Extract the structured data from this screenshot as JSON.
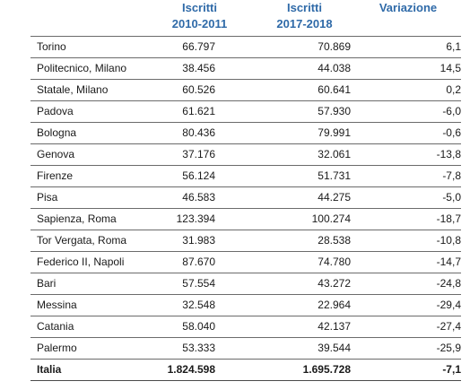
{
  "header": {
    "col_a": [
      "Iscritti",
      "2010-2011"
    ],
    "col_b": [
      "Iscritti",
      "2017-2018"
    ],
    "col_c": "Variazione"
  },
  "rows": [
    {
      "name": "Torino",
      "a": "66.797",
      "b": "70.869",
      "c": "6,1"
    },
    {
      "name": "Politecnico, Milano",
      "a": "38.456",
      "b": "44.038",
      "c": "14,5"
    },
    {
      "name": "Statale, Milano",
      "a": "60.526",
      "b": "60.641",
      "c": "0,2"
    },
    {
      "name": "Padova",
      "a": "61.621",
      "b": "57.930",
      "c": "-6,0"
    },
    {
      "name": "Bologna",
      "a": "80.436",
      "b": "79.991",
      "c": "-0,6"
    },
    {
      "name": "Genova",
      "a": "37.176",
      "b": "32.061",
      "c": "-13,8"
    },
    {
      "name": "Firenze",
      "a": "56.124",
      "b": "51.731",
      "c": "-7,8"
    },
    {
      "name": "Pisa",
      "a": "46.583",
      "b": "44.275",
      "c": "-5,0"
    },
    {
      "name": "Sapienza, Roma",
      "a": "123.394",
      "b": "100.274",
      "c": "-18,7"
    },
    {
      "name": "Tor Vergata, Roma",
      "a": "31.983",
      "b": "28.538",
      "c": "-10,8"
    },
    {
      "name": "Federico II, Napoli",
      "a": "87.670",
      "b": "74.780",
      "c": "-14,7"
    },
    {
      "name": "Bari",
      "a": "57.554",
      "b": "43.272",
      "c": "-24,8"
    },
    {
      "name": "Messina",
      "a": "32.548",
      "b": "22.964",
      "c": "-29,4"
    },
    {
      "name": "Catania",
      "a": "58.040",
      "b": "42.137",
      "c": "-27,4"
    },
    {
      "name": "Palermo",
      "a": "53.333",
      "b": "39.544",
      "c": "-25,9"
    }
  ],
  "total": {
    "name": "Italia",
    "a": "1.824.598",
    "b": "1.695.728",
    "c": "-7,1"
  },
  "colors": {
    "header_text": "#2f6aa8",
    "rule": "#6b6b6b"
  }
}
